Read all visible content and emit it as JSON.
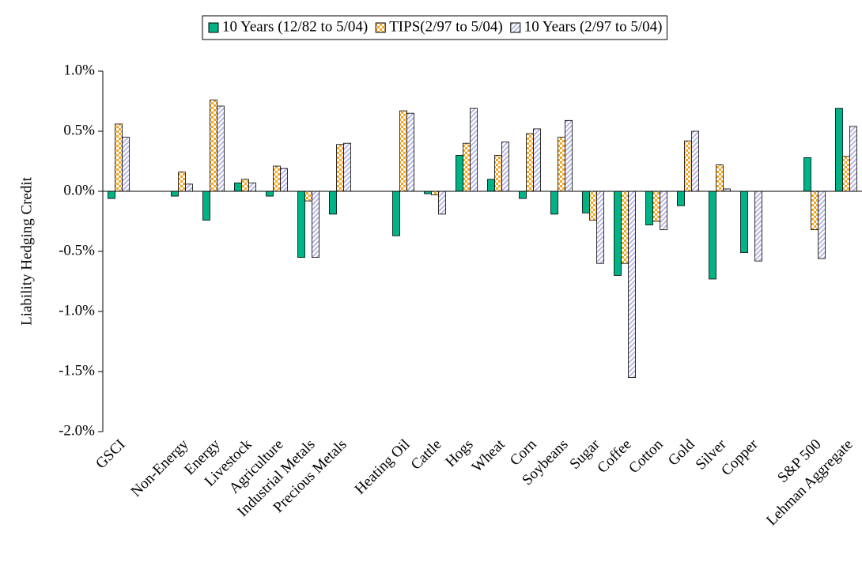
{
  "chart_data": {
    "type": "bar",
    "y_label": "Liability Hedging Credit",
    "categories": [
      "GSCI",
      null,
      "Non-Energy",
      "Energy",
      "Livestock",
      "Agriculture",
      "Industrial Metals",
      "Precious Metals",
      null,
      "Heating Oil",
      "Cattle",
      "Hogs",
      "Wheat",
      "Corn",
      "Soybeans",
      "Sugar",
      "Coffee",
      "Cotton",
      "Gold",
      "Silver",
      "Copper",
      null,
      "S&P 500",
      "Lehman Aggregate"
    ],
    "series": [
      {
        "name": "10 Years (12/82 to 5/04)",
        "color": "#00b386",
        "values": [
          -0.06,
          null,
          -0.04,
          -0.24,
          0.07,
          -0.04,
          -0.55,
          -0.19,
          null,
          -0.37,
          -0.02,
          0.3,
          0.1,
          -0.06,
          -0.19,
          -0.18,
          -0.7,
          -0.28,
          -0.12,
          -0.73,
          -0.51,
          null,
          0.28,
          0.69
        ]
      },
      {
        "name": "TIPS(2/97 to 5/04)",
        "color": "#f5a623",
        "values": [
          0.56,
          null,
          0.16,
          0.76,
          0.1,
          0.21,
          -0.08,
          0.39,
          null,
          0.67,
          -0.03,
          0.4,
          0.3,
          0.48,
          0.45,
          -0.24,
          -0.6,
          -0.25,
          0.42,
          0.22,
          0.0,
          null,
          -0.32,
          0.29
        ]
      },
      {
        "name": "10 Years (2/97 to 5/04)",
        "color": "#b8b8e0",
        "values": [
          0.45,
          null,
          0.06,
          0.71,
          0.07,
          0.19,
          -0.55,
          0.4,
          null,
          0.65,
          -0.19,
          0.69,
          0.41,
          0.52,
          0.59,
          -0.6,
          -1.55,
          -0.32,
          0.5,
          0.02,
          -0.58,
          null,
          -0.56,
          0.54
        ]
      }
    ],
    "ylim": [
      -2,
      1
    ],
    "yticks": [
      {
        "value": -2,
        "label": "-2.0%"
      },
      {
        "value": -1.5,
        "label": "-1.5%"
      },
      {
        "value": -1,
        "label": "-1.0%"
      },
      {
        "value": -0.5,
        "label": "-0.5%"
      },
      {
        "value": 0,
        "label": "0.0%"
      },
      {
        "value": 0.5,
        "label": "0.5%"
      },
      {
        "value": 1,
        "label": "1.0%"
      }
    ],
    "legend": "top"
  }
}
